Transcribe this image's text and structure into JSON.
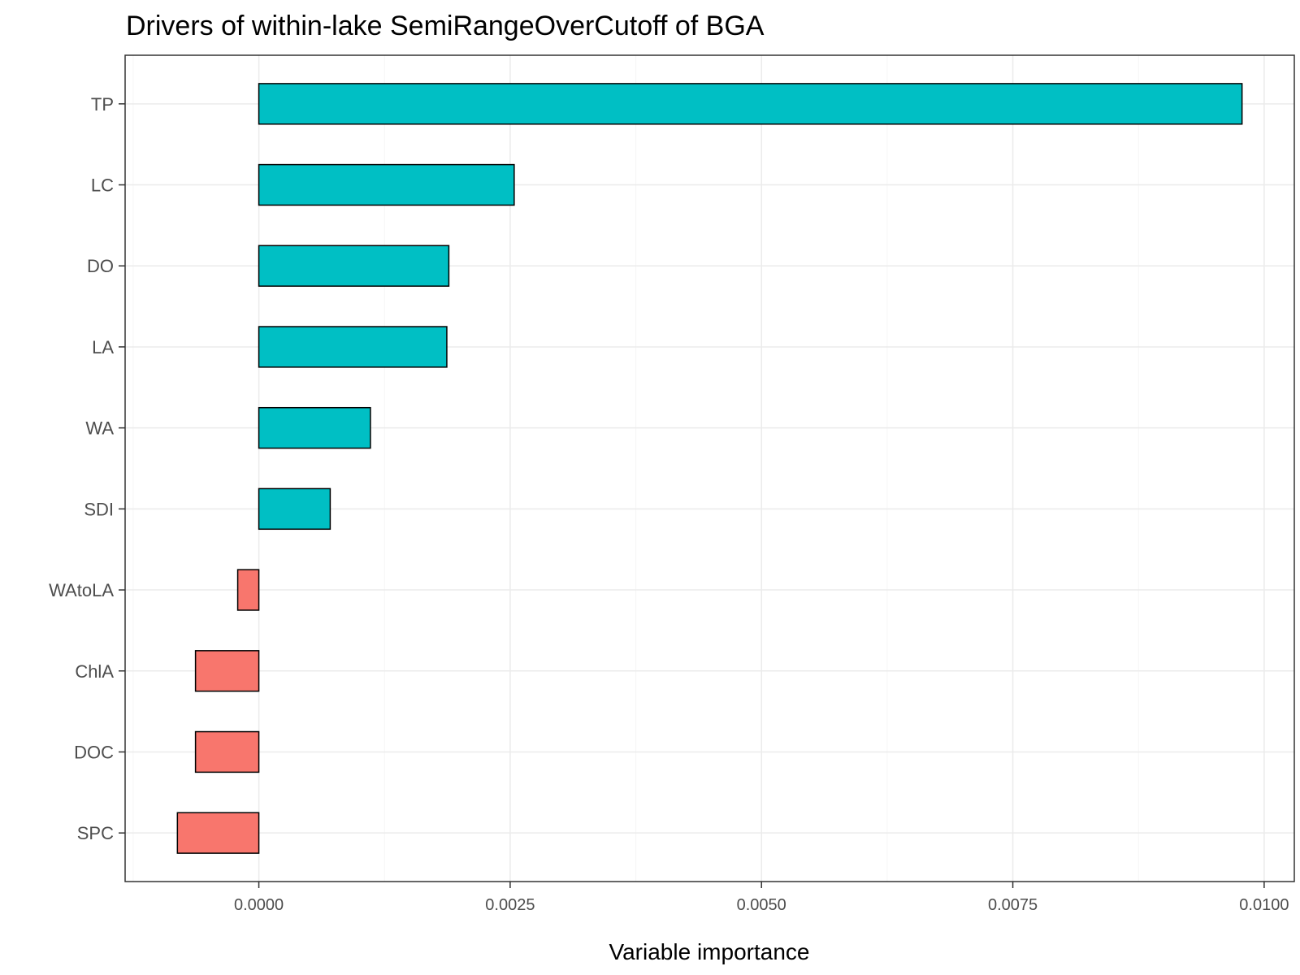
{
  "chart_data": {
    "type": "bar",
    "orientation": "horizontal",
    "title": "Drivers of within-lake SemiRangeOverCutoff of BGA",
    "xlabel": "Variable importance",
    "ylabel": "",
    "categories": [
      "TP",
      "LC",
      "DO",
      "LA",
      "WA",
      "SDI",
      "WAtoLA",
      "ChlA",
      "DOC",
      "SPC"
    ],
    "values": [
      0.00978,
      0.00254,
      0.00189,
      0.00187,
      0.00111,
      0.00071,
      -0.00021,
      -0.00063,
      -0.00063,
      -0.00081
    ],
    "xlim": [
      -0.00133,
      0.0103
    ],
    "xticks": [
      0.0,
      0.0025,
      0.005,
      0.0075,
      0.01
    ],
    "xtick_labels": [
      "0.0000",
      "0.0025",
      "0.0050",
      "0.0075",
      "0.0100"
    ],
    "grid": true,
    "legend": "none",
    "colors": {
      "positive": "#00BFC4",
      "negative": "#F8766D",
      "bar_border": "#000000",
      "grid_major": "#ebebeb",
      "grid_minor": "#f5f5f5",
      "panel_border": "#333333"
    }
  }
}
